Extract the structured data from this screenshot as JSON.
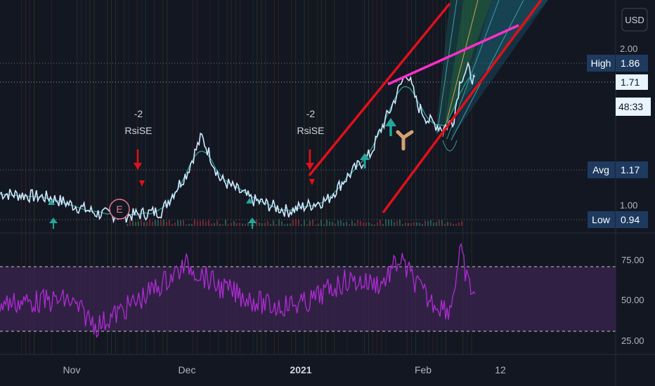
{
  "currency_button": "USD",
  "chart_data": [
    {
      "type": "line",
      "panel": "price",
      "x_ticks": [
        "Nov",
        "Dec",
        "2021",
        "Feb",
        "12"
      ],
      "y_ticks": [
        "2.00",
        "1.00"
      ],
      "y_scale": "log",
      "series": [
        {
          "color": "#cfe8ff",
          "x": [
            "2020-10-01",
            "2020-10-15",
            "2020-10-28",
            "2020-11-05",
            "2020-11-15",
            "2020-11-22",
            "2020-11-26",
            "2020-12-01",
            "2020-12-10",
            "2020-12-20",
            "2020-12-31",
            "2021-01-05",
            "2021-01-12",
            "2021-01-18",
            "2021-01-22",
            "2021-01-25",
            "2021-01-28",
            "2021-02-01",
            "2021-02-04",
            "2021-02-06",
            "2021-02-08",
            "2021-02-10"
          ],
          "y": [
            1.05,
            1.03,
            0.96,
            0.95,
            0.97,
            1.15,
            1.35,
            1.12,
            1.02,
            0.97,
            1.02,
            1.12,
            1.25,
            1.55,
            1.8,
            1.55,
            1.45,
            1.4,
            1.45,
            1.75,
            1.82,
            1.71
          ]
        }
      ],
      "tags": {
        "high": {
          "label": "High",
          "value": "1.86"
        },
        "last": {
          "value": "1.71",
          "countdown": "48:33"
        },
        "avg": {
          "label": "Avg",
          "value": "1.17"
        },
        "low": {
          "label": "Low",
          "value": "0.94"
        }
      },
      "annotations": [
        {
          "text_top": "-2",
          "text_bottom": "RsiSE",
          "date": "2020-11-22"
        },
        {
          "text_top": "-2",
          "text_bottom": "RsiSE",
          "date": "2021-01-04"
        }
      ],
      "earnings_marker": "E",
      "colors": {
        "channel": "#e0101a",
        "trend": "#ff2fc8",
        "price": "#cfe8ff",
        "ma": "#2a9d8f",
        "signal_down": "#e0101a",
        "signal_up": "#26a69a",
        "hand": "#d4a373"
      }
    },
    {
      "type": "line",
      "panel": "rsi",
      "y_ticks": [
        "75.00",
        "50.00",
        "25.00"
      ],
      "ylim": [
        20,
        90
      ],
      "bands": [
        30,
        70
      ],
      "series": [
        {
          "color": "#b02bd6",
          "x": [
            "2020-10-01",
            "2020-10-20",
            "2020-10-28",
            "2020-11-10",
            "2020-11-22",
            "2020-12-01",
            "2020-12-15",
            "2020-12-25",
            "2021-01-05",
            "2021-01-15",
            "2021-01-20",
            "2021-01-28",
            "2021-02-03",
            "2021-02-06",
            "2021-02-08",
            "2021-02-10"
          ],
          "y": [
            48,
            50,
            34,
            52,
            72,
            58,
            46,
            48,
            62,
            60,
            75,
            50,
            44,
            80,
            60,
            54
          ]
        }
      ],
      "colors": {
        "band_fill": "#3b2450",
        "band_line": "#c8c8c8"
      }
    }
  ]
}
